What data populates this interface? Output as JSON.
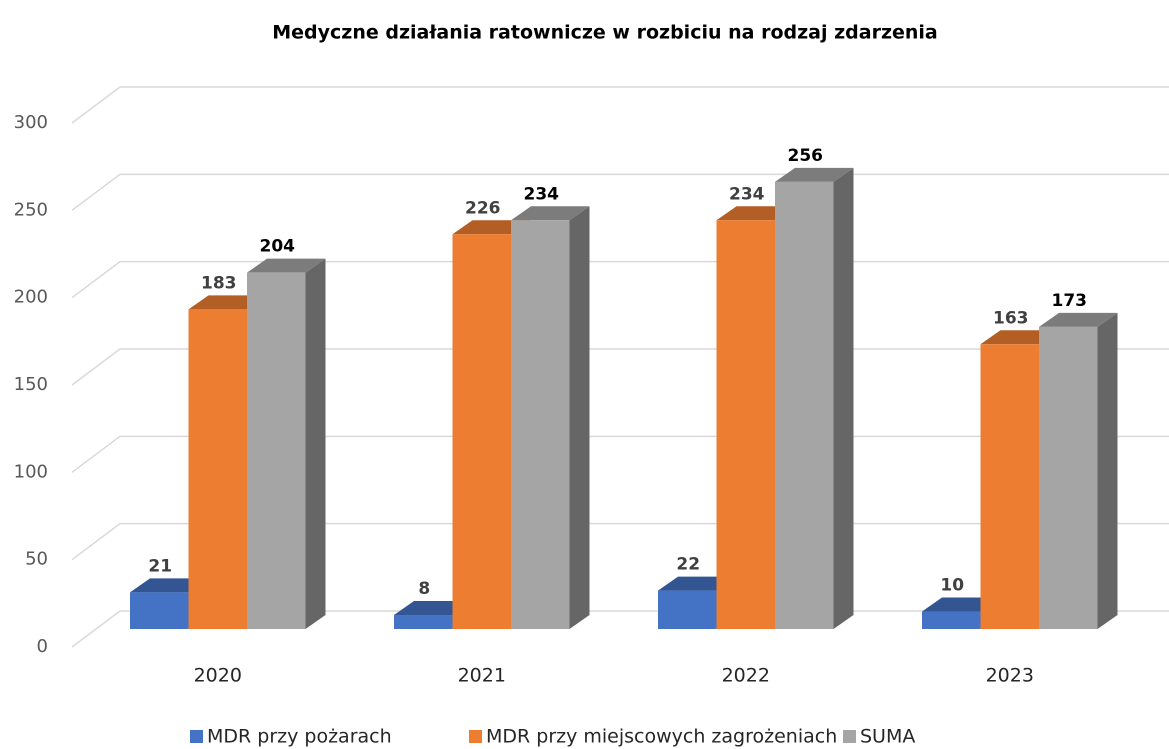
{
  "chart_data": {
    "type": "bar3d",
    "title": "Medyczne działania ratownicze w rozbiciu na rodzaj zdarzenia",
    "categories": [
      "2020",
      "2021",
      "2022",
      "2023"
    ],
    "series": [
      {
        "name": "MDR przy pożarach",
        "color": "#4472c4",
        "values": [
          21,
          8,
          22,
          10
        ]
      },
      {
        "name": "MDR przy miejscowych zagrożeniach",
        "color": "#ed7d31",
        "values": [
          183,
          226,
          234,
          163
        ]
      },
      {
        "name": "SUMA",
        "color": "#a5a5a5",
        "values": [
          204,
          234,
          256,
          173
        ]
      }
    ],
    "ylim": [
      0,
      300
    ],
    "yticks": [
      0,
      50,
      100,
      150,
      200,
      250,
      300
    ],
    "grid": true,
    "legend": "bottom"
  }
}
